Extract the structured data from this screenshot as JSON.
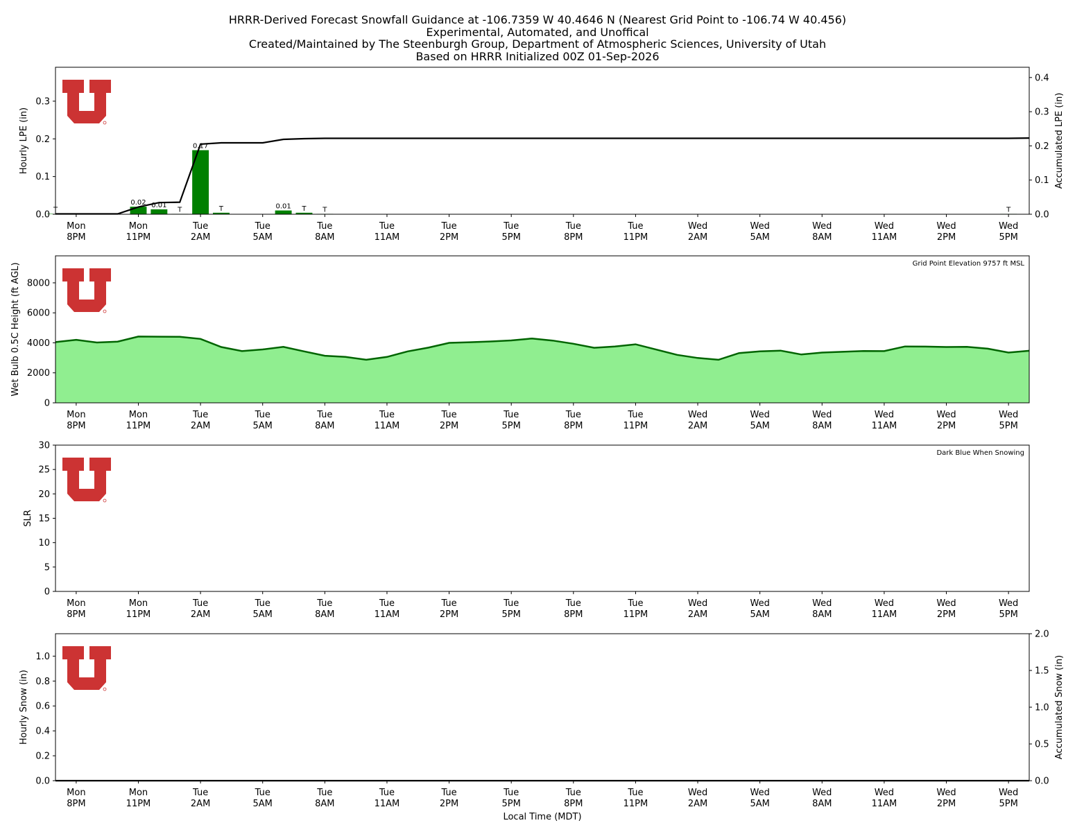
{
  "titles": {
    "line1": "HRRR-Derived Forecast Snowfall Guidance at -106.7359 W 40.4646 N (Nearest Grid Point to -106.74 W 40.456)",
    "line2": "Experimental, Automated, and Unoffical",
    "line3": "Created/Maintained by The Steenburgh Group, Department of Atmospheric Sciences, University of Utah",
    "line4": "Based on HRRR Initialized 00Z 01-Sep-2026"
  },
  "colors": {
    "bar": "#008000",
    "line": "#000000",
    "fill": "#90ee90",
    "fill_edge": "#006400",
    "logo": "#cc3333"
  },
  "chart_data": {
    "x_ticks": [
      [
        "Mon",
        "8PM"
      ],
      [
        "Mon",
        "11PM"
      ],
      [
        "Tue",
        "2AM"
      ],
      [
        "Tue",
        "5AM"
      ],
      [
        "Tue",
        "8AM"
      ],
      [
        "Tue",
        "11AM"
      ],
      [
        "Tue",
        "2PM"
      ],
      [
        "Tue",
        "5PM"
      ],
      [
        "Tue",
        "8PM"
      ],
      [
        "Tue",
        "11PM"
      ],
      [
        "Wed",
        "2AM"
      ],
      [
        "Wed",
        "5AM"
      ],
      [
        "Wed",
        "8AM"
      ],
      [
        "Wed",
        "11AM"
      ],
      [
        "Wed",
        "2PM"
      ],
      [
        "Wed",
        "5PM"
      ]
    ],
    "x_tick_hours": [
      1,
      4,
      7,
      10,
      13,
      16,
      19,
      22,
      25,
      28,
      31,
      34,
      37,
      40,
      43,
      46
    ],
    "x_range": [
      0,
      47
    ],
    "xlabel": "Local Time (MDT)",
    "panels": [
      {
        "type": "bar+line",
        "ylabel": "Hourly LPE (in)",
        "y2label": "Accumulated LPE (in)",
        "ylim": [
          0,
          0.39
        ],
        "y2lim": [
          0,
          0.43
        ],
        "yticks": [
          "0.0",
          "0.1",
          "0.2",
          "0.3"
        ],
        "y2ticks": [
          "0.0",
          "0.1",
          "0.2",
          "0.3",
          "0.4"
        ],
        "bars": [
          {
            "hour": 4,
            "value": 0.02,
            "label": "0.02"
          },
          {
            "hour": 5,
            "value": 0.013,
            "label": "0.01"
          },
          {
            "hour": 6,
            "value": 0.001,
            "label": "T"
          },
          {
            "hour": 7,
            "value": 0.17,
            "label": "0.17"
          },
          {
            "hour": 8,
            "value": 0.004,
            "label": "T"
          },
          {
            "hour": 11,
            "value": 0.01,
            "label": "0.01"
          },
          {
            "hour": 12,
            "value": 0.004,
            "label": "T"
          },
          {
            "hour": 13,
            "value": 0.001,
            "label": "T"
          },
          {
            "hour": 0,
            "value": 0.001,
            "label": "T"
          },
          {
            "hour": 46,
            "value": 0.001,
            "label": "T"
          }
        ],
        "accum_hours": [
          0,
          1,
          2,
          3,
          4,
          5,
          6,
          7,
          8,
          9,
          10,
          11,
          12,
          13,
          46,
          47
        ],
        "accum_values": [
          0.001,
          0.001,
          0.001,
          0.001,
          0.021,
          0.034,
          0.035,
          0.205,
          0.209,
          0.209,
          0.209,
          0.219,
          0.221,
          0.222,
          0.222,
          0.223
        ]
      },
      {
        "type": "area",
        "ylabel": "Wet Bulb 0.5C Height (ft AGL)",
        "ylim": [
          0,
          9800
        ],
        "yticks": [
          "0",
          "2000",
          "4000",
          "6000",
          "8000"
        ],
        "annotation": "Grid Point Elevation 9757 ft MSL",
        "values": [
          4050,
          4200,
          4020,
          4080,
          4420,
          4410,
          4400,
          4260,
          3720,
          3450,
          3560,
          3730,
          3430,
          3140,
          3060,
          2870,
          3060,
          3430,
          3680,
          4000,
          4040,
          4090,
          4160,
          4290,
          4150,
          3940,
          3670,
          3760,
          3900,
          3550,
          3200,
          2990,
          2870,
          3320,
          3430,
          3480,
          3220,
          3350,
          3400,
          3460,
          3450,
          3760,
          3750,
          3720,
          3730,
          3610,
          3350,
          3470
        ]
      },
      {
        "type": "line",
        "ylabel": "SLR",
        "ylim": [
          0,
          30
        ],
        "yticks": [
          "0",
          "5",
          "10",
          "15",
          "20",
          "25",
          "30"
        ],
        "annotation": "Dark Blue When Snowing"
      },
      {
        "type": "bar+line",
        "ylabel": "Hourly Snow (in)",
        "y2label": "Accumulated Snow (in)",
        "ylim": [
          0,
          1.18
        ],
        "y2lim": [
          0,
          2.0
        ],
        "yticks": [
          "0.0",
          "0.2",
          "0.4",
          "0.6",
          "0.8",
          "1.0"
        ],
        "y2ticks": [
          "0.0",
          "0.5",
          "1.0",
          "1.5",
          "2.0"
        ],
        "accum_hours": [
          0,
          47
        ],
        "accum_values": [
          0,
          0
        ]
      }
    ]
  }
}
